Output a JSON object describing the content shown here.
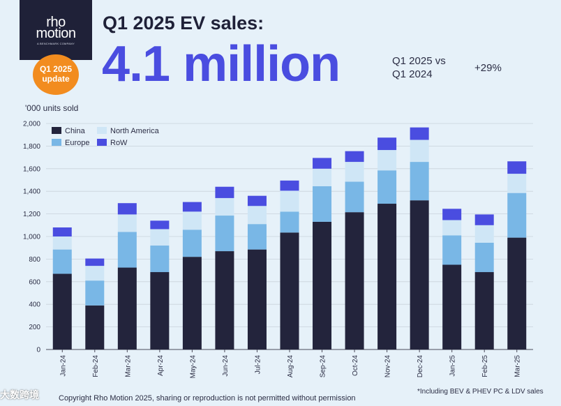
{
  "logo": {
    "line1": "rho",
    "line2": "motion",
    "tagline": "A BENCHMARK COMPANY"
  },
  "badge": {
    "line1": "Q1 2025",
    "line2": "update"
  },
  "header": {
    "title": "Q1 2025 EV sales:",
    "headline": "4.1 million",
    "compare_line1": "Q1 2025 vs",
    "compare_line2": "Q1 2024",
    "growth": "+29%"
  },
  "footnote": "*Including BEV & PHEV PC & LDV sales",
  "copyright": "Copyright Rho Motion 2025, sharing or reproduction is not permitted without permission",
  "watermark": "大数跨境",
  "colors": {
    "china": "#23243c",
    "europe": "#79b7e6",
    "north_america": "#cfe6f6",
    "row": "#4a4de0",
    "headline": "#4a4de0",
    "badge": "#f28c1f"
  },
  "chart_data": {
    "type": "bar",
    "stacked": true,
    "title": "",
    "xlabel": "",
    "ylabel": "'000 units sold",
    "ylim": [
      0,
      2000
    ],
    "yticks": [
      "0",
      "200",
      "400",
      "600",
      "800",
      "1,000",
      "1,200",
      "1,400",
      "1,600",
      "1,800",
      "2,000"
    ],
    "ytick_values": [
      0,
      200,
      400,
      600,
      800,
      1000,
      1200,
      1400,
      1600,
      1800,
      2000
    ],
    "legend_position": "top-left",
    "categories": [
      "Jan-24",
      "Feb-24",
      "Mar-24",
      "Apr-24",
      "May-24",
      "Jun-24",
      "Jul-24",
      "Aug-24",
      "Sep-24",
      "Oct-24",
      "Nov-24",
      "Dec-24",
      "Jan-25",
      "Feb-25",
      "Mar-25"
    ],
    "series": [
      {
        "name": "China",
        "color": "#23243c",
        "values": [
          670,
          390,
          725,
          685,
          820,
          870,
          885,
          1035,
          1130,
          1215,
          1290,
          1320,
          750,
          685,
          990
        ]
      },
      {
        "name": "Europe",
        "color": "#79b7e6",
        "values": [
          215,
          220,
          315,
          235,
          240,
          315,
          225,
          185,
          315,
          270,
          295,
          340,
          260,
          260,
          395
        ]
      },
      {
        "name": "North America",
        "color": "#cfe6f6",
        "values": [
          115,
          130,
          155,
          145,
          160,
          155,
          160,
          185,
          155,
          175,
          180,
          195,
          135,
          155,
          170
        ]
      },
      {
        "name": "RoW",
        "color": "#4a4de0",
        "values": [
          80,
          65,
          100,
          75,
          85,
          100,
          90,
          90,
          95,
          95,
          110,
          110,
          100,
          95,
          110
        ]
      }
    ],
    "legend": [
      {
        "label": "China",
        "color": "#23243c"
      },
      {
        "label": "North America",
        "color": "#cfe6f6"
      },
      {
        "label": "Europe",
        "color": "#79b7e6"
      },
      {
        "label": "RoW",
        "color": "#4a4de0"
      }
    ]
  }
}
